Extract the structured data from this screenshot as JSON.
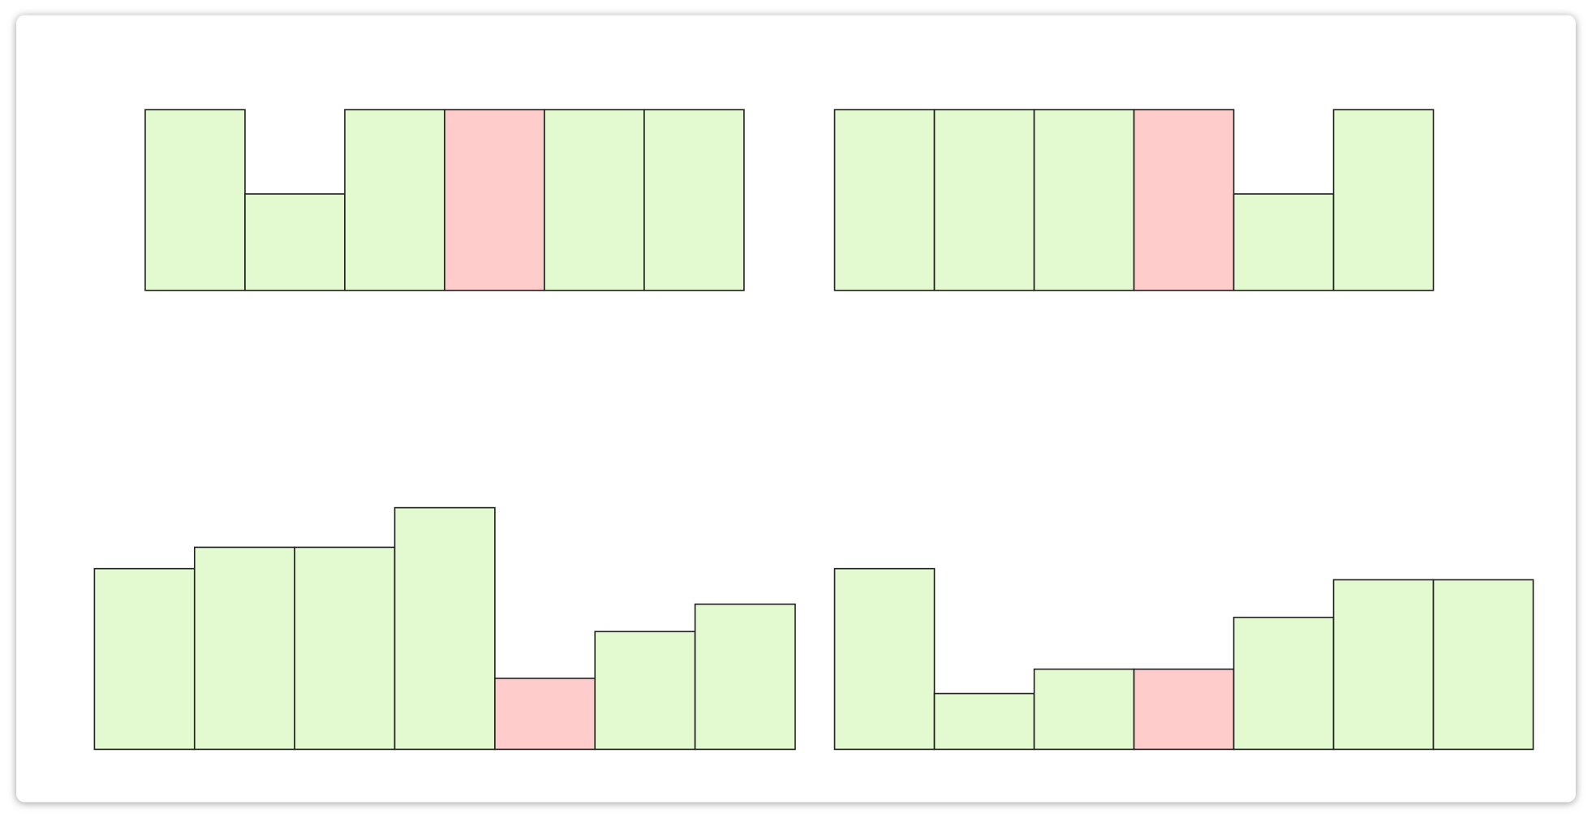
{
  "fill": "#e3fad0",
  "highlight_fill": "#ffcccc",
  "groups": [
    {
      "heights": [
        178,
        95,
        178,
        178,
        178,
        178
      ],
      "highlight": 3
    },
    {
      "heights": [
        178,
        178,
        178,
        178,
        95,
        178
      ],
      "highlight": 3
    },
    {
      "heights": [
        178,
        199,
        199,
        238,
        70,
        116,
        143
      ],
      "highlight": 4
    },
    {
      "heights": [
        178,
        55,
        79,
        79,
        130,
        167,
        167
      ],
      "highlight": 3
    }
  ]
}
